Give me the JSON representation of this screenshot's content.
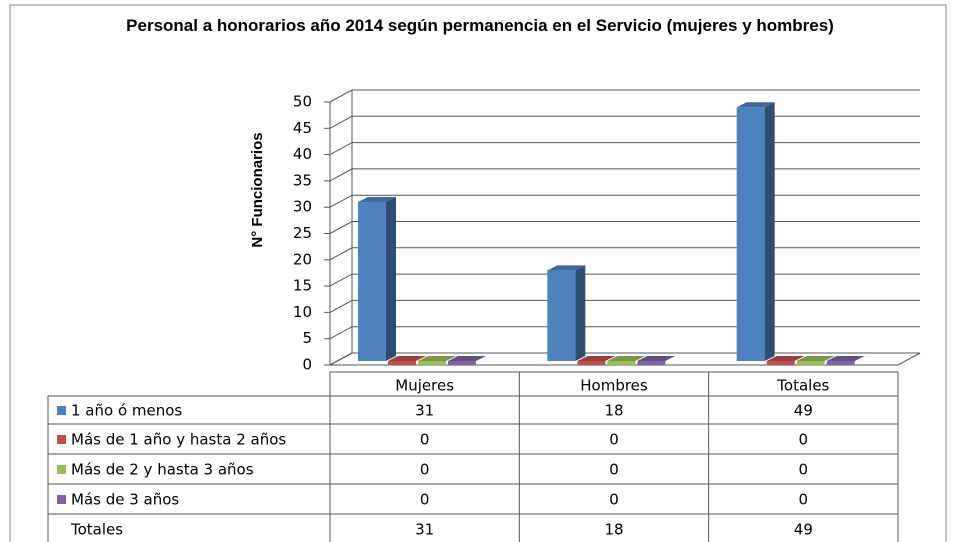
{
  "chart_data": {
    "type": "bar3d",
    "title": "Personal a honorarios año 2014 según permanencia en el Servicio (mujeres y hombres)",
    "y_label": "N° Funcionarios",
    "categories": [
      "Mujeres",
      "Hombres",
      "Totales"
    ],
    "series": [
      {
        "name": "1 año ó menos",
        "color": "#4f81bd",
        "values": [
          31,
          18,
          49
        ]
      },
      {
        "name": "Más de 1 año y hasta 2 años",
        "color": "#c0504d",
        "values": [
          0,
          0,
          0
        ]
      },
      {
        "name": "Más de 2  y hasta 3 años",
        "color": "#9bbb59",
        "values": [
          0,
          0,
          0
        ]
      },
      {
        "name": "Más de 3 años",
        "color": "#8064a2",
        "values": [
          0,
          0,
          0
        ]
      }
    ],
    "table_totals": {
      "label": "Totales",
      "values": [
        31,
        18,
        49
      ]
    },
    "ylim": [
      0,
      50
    ],
    "yticks": [
      0,
      5,
      10,
      15,
      20,
      25,
      30,
      35,
      40,
      45,
      50
    ],
    "grid": true
  }
}
